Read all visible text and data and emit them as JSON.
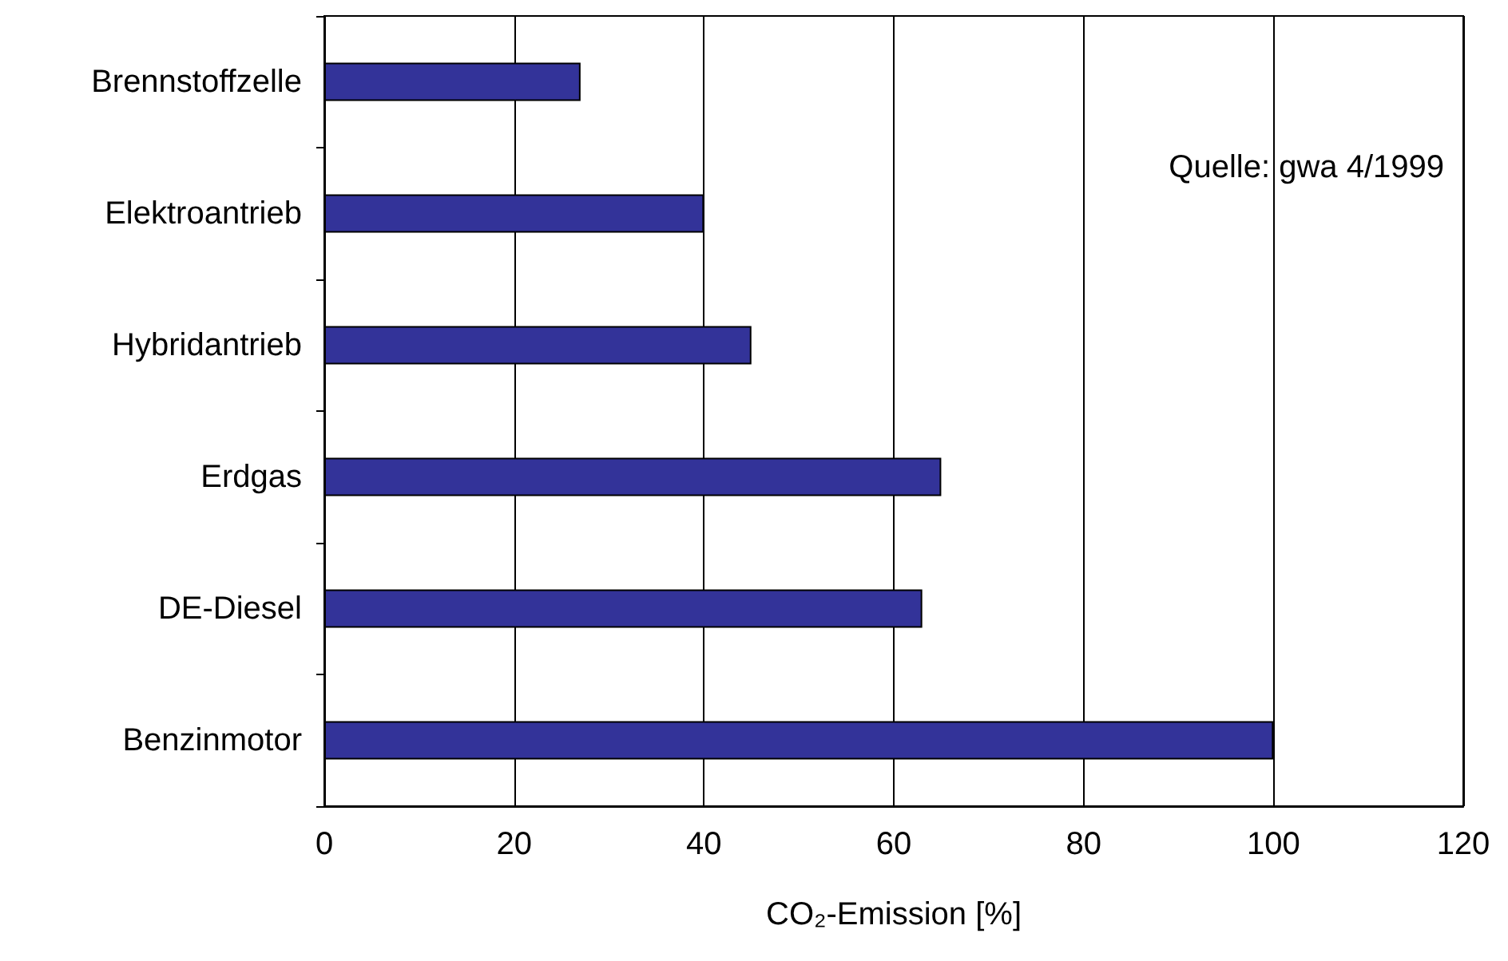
{
  "chart_data": {
    "type": "bar",
    "orientation": "horizontal",
    "categories": [
      "Brennstoffzelle",
      "Elektroantrieb",
      "Hybridantrieb",
      "Erdgas",
      "DE-Diesel",
      "Benzinmotor"
    ],
    "values": [
      27,
      40,
      45,
      65,
      63,
      100
    ],
    "color": "#333399",
    "xlabel": "CO₂-Emission [%]",
    "xlim": [
      0,
      120
    ],
    "xticks": [
      0,
      20,
      40,
      60,
      80,
      100,
      120
    ],
    "grid": "x",
    "annotations": [
      "Quelle: gwa 4/1999"
    ]
  }
}
